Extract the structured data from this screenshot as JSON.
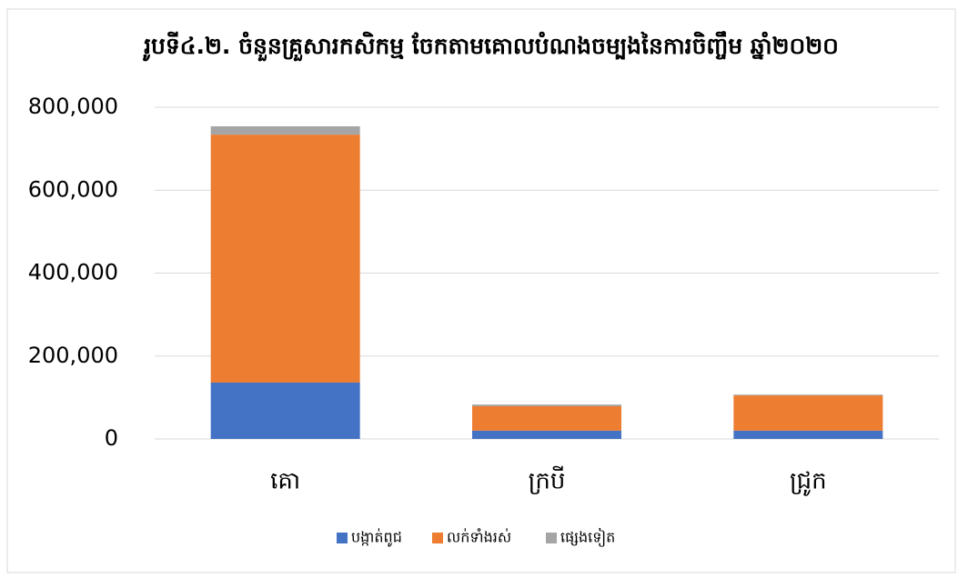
{
  "chart_data": {
    "type": "stacked_bar",
    "title": "រូបទី៤.២. ចំនួនគ្រួសារកសិកម្ម ចែកតាមគោលបំណងចម្បងនៃការចិញ្ចឹម ឆ្នាំ២០២០",
    "categories": [
      "គោ",
      "ក្របី",
      "ជ្រូក"
    ],
    "series": [
      {
        "name": "បង្កាត់ពូជ",
        "color": "#4472c4",
        "values": [
          136000,
          20000,
          20000
        ]
      },
      {
        "name": "លក់ទាំងរស់",
        "color": "#ed7d31",
        "values": [
          598000,
          59000,
          85000
        ]
      },
      {
        "name": "ផ្សេងទៀត",
        "color": "#a5a5a5",
        "values": [
          20000,
          4000,
          2000
        ]
      }
    ],
    "ylim": [
      0,
      800000
    ],
    "yticks": [
      0,
      {
        "value": 200000,
        "label": "200,000"
      },
      {
        "value": 400000,
        "label": "400,000"
      },
      {
        "value": 600000,
        "label": "600,000"
      },
      {
        "value": 800000,
        "label": "800,000"
      }
    ],
    "grid": true,
    "legend": "bottom"
  }
}
